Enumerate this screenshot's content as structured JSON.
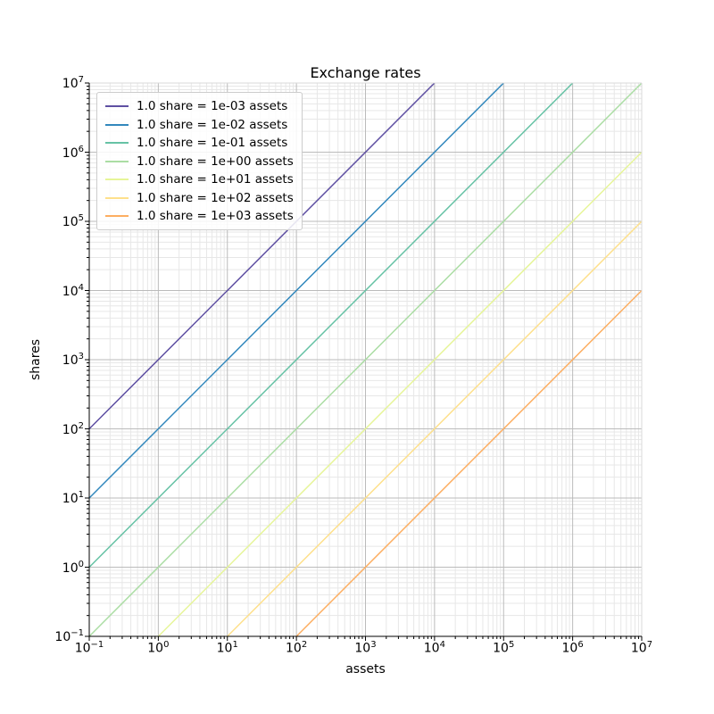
{
  "chart_data": {
    "type": "line",
    "title": "Exchange rates",
    "xlabel": "assets",
    "ylabel": "shares",
    "x_scale": "log",
    "y_scale": "log",
    "xlim": [
      0.1,
      10000000
    ],
    "ylim": [
      0.1,
      10000000
    ],
    "tick_base": 10,
    "x_tick_exponents": [
      -1,
      0,
      1,
      2,
      3,
      4,
      5,
      6,
      7
    ],
    "y_tick_exponents": [
      -1,
      0,
      1,
      2,
      3,
      4,
      5,
      6,
      7
    ],
    "grid": "both",
    "grid_major_color": "#bbbbbb",
    "grid_minor_color": "#e7e7e7",
    "legend_position": "upper left",
    "series": [
      {
        "name": "1.0 share = 1e-03 assets",
        "assets_per_share": 0.001,
        "color": "#5e4fa2",
        "points": [
          [
            0.1,
            100
          ],
          [
            10000,
            10000000
          ]
        ]
      },
      {
        "name": "1.0 share = 1e-02 assets",
        "assets_per_share": 0.01,
        "color": "#3288bd",
        "points": [
          [
            0.1,
            10
          ],
          [
            100000,
            10000000
          ]
        ]
      },
      {
        "name": "1.0 share = 1e-01 assets",
        "assets_per_share": 0.1,
        "color": "#66c2a5",
        "points": [
          [
            0.1,
            1
          ],
          [
            1000000,
            10000000
          ]
        ]
      },
      {
        "name": "1.0 share = 1e+00 assets",
        "assets_per_share": 1,
        "color": "#abdda4",
        "points": [
          [
            0.1,
            0.1
          ],
          [
            10000000,
            10000000
          ]
        ]
      },
      {
        "name": "1.0 share = 1e+01 assets",
        "assets_per_share": 10,
        "color": "#e6f598",
        "points": [
          [
            1,
            0.1
          ],
          [
            10000000,
            1000000
          ]
        ]
      },
      {
        "name": "1.0 share = 1e+02 assets",
        "assets_per_share": 100,
        "color": "#fee08b",
        "points": [
          [
            10,
            0.1
          ],
          [
            10000000,
            100000
          ]
        ]
      },
      {
        "name": "1.0 share = 1e+03 assets",
        "assets_per_share": 1000,
        "color": "#fdae61",
        "points": [
          [
            100,
            0.1
          ],
          [
            10000000,
            10000
          ]
        ]
      }
    ]
  }
}
